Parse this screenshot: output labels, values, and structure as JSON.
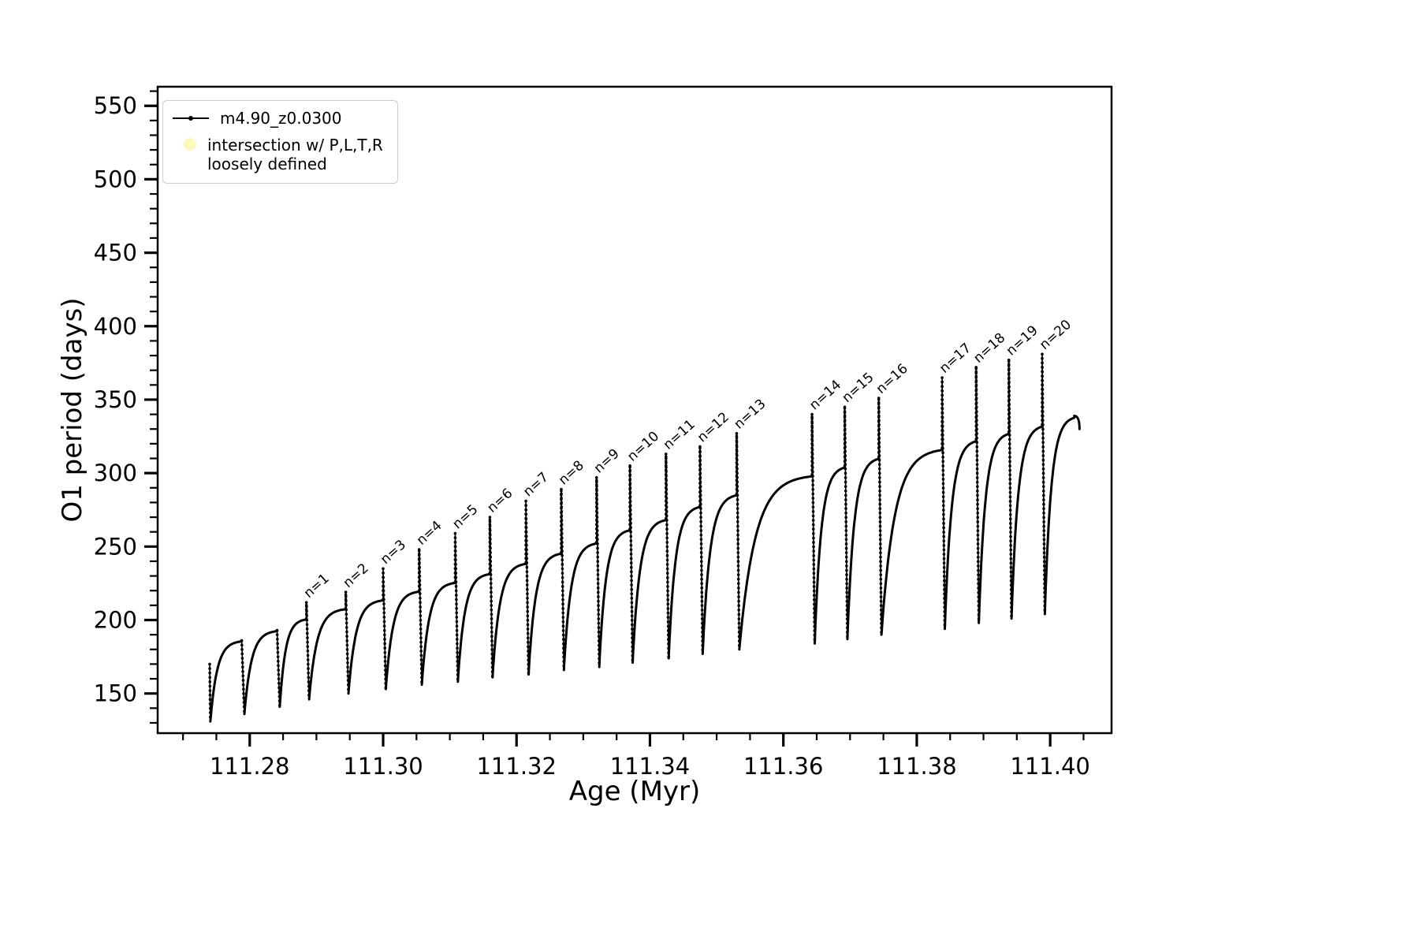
{
  "figure": {
    "xlabel": "Age (Myr)",
    "ylabel": "O1 period (days)",
    "legend": {
      "series_label": "m4.90_z0.0300",
      "intersection_label_line1": "intersection w/ P,L,T,R",
      "intersection_label_line2": "loosely defined",
      "series_color": "#000000",
      "intersection_marker_color": "#fbfabc"
    }
  },
  "chart_data": {
    "type": "line",
    "title": "",
    "xlabel": "Age (Myr)",
    "ylabel": "O1 period (days)",
    "xlim": [
      111.2662,
      111.4092
    ],
    "ylim": [
      123,
      563
    ],
    "grid": false,
    "legend_position": "upper left",
    "series": [
      {
        "name": "m4.90_z0.0300",
        "color": "#000000",
        "marker": "dot"
      },
      {
        "name": "intersection w/ P,L,T,R loosely defined",
        "color": "#fbfabc",
        "marker": "dot"
      }
    ],
    "x_ticks": {
      "values": [
        111.28,
        111.3,
        111.32,
        111.34,
        111.36,
        111.38,
        111.4
      ],
      "labels": [
        "111.28",
        "111.30",
        "111.32",
        "111.34",
        "111.36",
        "111.38",
        "111.40"
      ],
      "minor_step": 0.005
    },
    "y_ticks": {
      "values": [
        150,
        200,
        250,
        300,
        350,
        400,
        450,
        500,
        550
      ],
      "labels": [
        "150",
        "200",
        "250",
        "300",
        "350",
        "400",
        "450",
        "500",
        "550"
      ],
      "minor_step": 10
    },
    "start_point": {
      "x": 111.274,
      "y": 170
    },
    "cycles": [
      {
        "x0": 111.2741,
        "min": 131,
        "plateau": 186,
        "end_x": 111.2788,
        "spike": null,
        "label": null
      },
      {
        "x0": 111.2792,
        "min": 136,
        "plateau": 193,
        "end_x": 111.2841,
        "spike": null,
        "label": null
      },
      {
        "x0": 111.2845,
        "min": 141,
        "plateau": 201,
        "end_x": 111.2885,
        "spike": 212,
        "label": "n=1"
      },
      {
        "x0": 111.2889,
        "min": 146,
        "plateau": 208,
        "end_x": 111.2944,
        "spike": 219,
        "label": "n=2"
      },
      {
        "x0": 111.2948,
        "min": 150,
        "plateau": 214,
        "end_x": 111.3,
        "spike": 235,
        "label": "n=3"
      },
      {
        "x0": 111.3004,
        "min": 153,
        "plateau": 220,
        "end_x": 111.3054,
        "spike": 248,
        "label": "n=4"
      },
      {
        "x0": 111.3058,
        "min": 156,
        "plateau": 226,
        "end_x": 111.3108,
        "spike": 259,
        "label": "n=5"
      },
      {
        "x0": 111.3112,
        "min": 158,
        "plateau": 232,
        "end_x": 111.316,
        "spike": 270,
        "label": "n=6"
      },
      {
        "x0": 111.3164,
        "min": 161,
        "plateau": 239,
        "end_x": 111.3214,
        "spike": 281,
        "label": "n=7"
      },
      {
        "x0": 111.3218,
        "min": 163,
        "plateau": 246,
        "end_x": 111.3267,
        "spike": 289,
        "label": "n=8"
      },
      {
        "x0": 111.3271,
        "min": 166,
        "plateau": 253,
        "end_x": 111.332,
        "spike": 297,
        "label": "n=9"
      },
      {
        "x0": 111.3324,
        "min": 168,
        "plateau": 262,
        "end_x": 111.337,
        "spike": 305,
        "label": "n=10"
      },
      {
        "x0": 111.3374,
        "min": 171,
        "plateau": 269,
        "end_x": 111.3424,
        "spike": 313,
        "label": "n=11"
      },
      {
        "x0": 111.3428,
        "min": 174,
        "plateau": 278,
        "end_x": 111.3475,
        "spike": 318,
        "label": "n=12"
      },
      {
        "x0": 111.3479,
        "min": 177,
        "plateau": 286,
        "end_x": 111.353,
        "spike": 327,
        "label": "n=13"
      },
      {
        "x0": 111.3534,
        "min": 180,
        "plateau": 299,
        "end_x": 111.3643,
        "spike": 340,
        "label": "n=14"
      },
      {
        "x0": 111.3647,
        "min": 184,
        "plateau": 305,
        "end_x": 111.3692,
        "spike": 345,
        "label": "n=15"
      },
      {
        "x0": 111.3696,
        "min": 187,
        "plateau": 311,
        "end_x": 111.3743,
        "spike": 351,
        "label": "n=16"
      },
      {
        "x0": 111.3747,
        "min": 190,
        "plateau": 317,
        "end_x": 111.3838,
        "spike": 365,
        "label": "n=17"
      },
      {
        "x0": 111.3842,
        "min": 194,
        "plateau": 323,
        "end_x": 111.3889,
        "spike": 372,
        "label": "n=18"
      },
      {
        "x0": 111.3893,
        "min": 198,
        "plateau": 328,
        "end_x": 111.3938,
        "spike": 377,
        "label": "n=19"
      },
      {
        "x0": 111.3942,
        "min": 201,
        "plateau": 333,
        "end_x": 111.3988,
        "spike": 381,
        "label": "n=20"
      },
      {
        "x0": 111.3992,
        "min": 204,
        "plateau": 339,
        "end_x": 111.4036,
        "spike": null,
        "label": null
      }
    ],
    "end_tail": {
      "x": 111.4044,
      "y": 330
    }
  }
}
